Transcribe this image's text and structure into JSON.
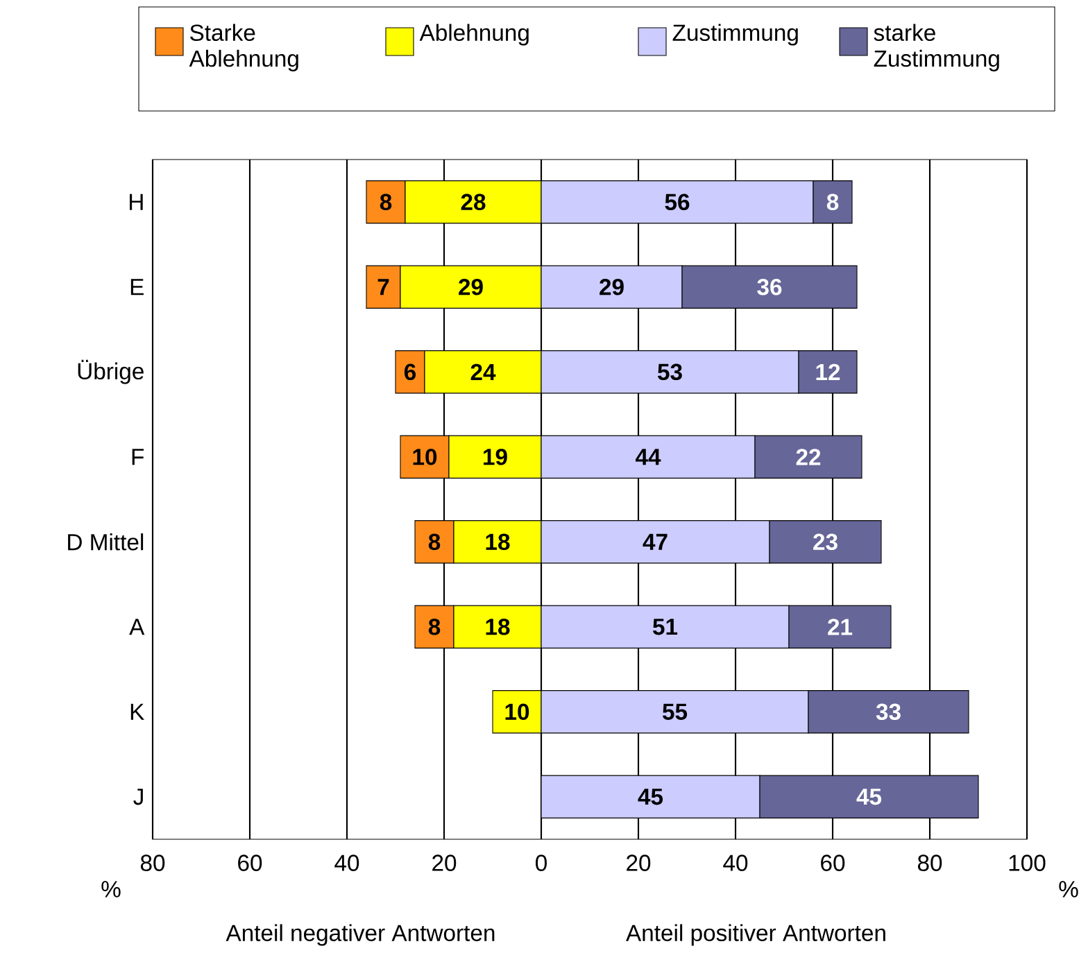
{
  "chart_data": {
    "type": "bar",
    "orientation": "horizontal",
    "categories": [
      "H",
      "E",
      "Übrige",
      "F",
      "D Mittel",
      "A",
      "K",
      "J"
    ],
    "series": [
      {
        "name": "Starke Ablehnung",
        "color": "#ff8c1a",
        "values": [
          8,
          7,
          6,
          10,
          8,
          8,
          null,
          null
        ],
        "base": [
          -36,
          -36,
          -30,
          -29,
          -26,
          -26,
          null,
          null
        ]
      },
      {
        "name": "Ablehnung",
        "color": "#ffff00",
        "values": [
          28,
          29,
          24,
          19,
          18,
          18,
          10,
          null
        ],
        "base": [
          -28,
          -29,
          -24,
          -19,
          -18,
          -18,
          -10,
          null
        ]
      },
      {
        "name": "Zustimmung",
        "color": "#ccccff",
        "values": [
          56,
          29,
          53,
          44,
          47,
          51,
          55,
          45
        ],
        "base": [
          0,
          0,
          0,
          0,
          0,
          0,
          0,
          0
        ]
      },
      {
        "name": "starke Zustimmung",
        "color": "#666699",
        "values": [
          8,
          36,
          12,
          22,
          23,
          21,
          33,
          45
        ],
        "base": [
          56,
          29,
          53,
          44,
          47,
          51,
          55,
          45
        ]
      }
    ],
    "xlim": [
      -80,
      100
    ],
    "xticks": [
      {
        "value": -80,
        "label": "80"
      },
      {
        "value": -60,
        "label": "60"
      },
      {
        "value": -40,
        "label": "40"
      },
      {
        "value": -20,
        "label": "20"
      },
      0,
      20,
      40,
      60,
      80,
      100
    ],
    "grid": "x",
    "legend": "top",
    "data_labels": true,
    "annotations": [
      "%",
      "%",
      "Anteil negativer Antworten",
      "Anteil positiver Antworten"
    ]
  }
}
